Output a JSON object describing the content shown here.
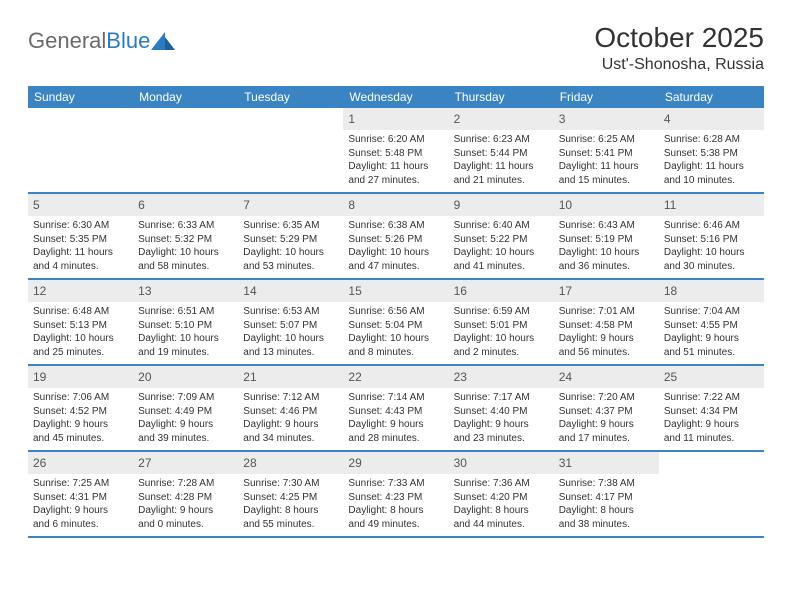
{
  "brand": {
    "name_part1": "General",
    "name_part2": "Blue",
    "text_color": "#6a6a6a",
    "accent_color": "#2a7bbf",
    "icon_fill": "#2a7bbf"
  },
  "title": "October 2025",
  "location": "Ust'-Shonosha, Russia",
  "header_bg": "#3b84c4",
  "header_text_color": "#ffffff",
  "daynum_bg": "#ececec",
  "border_color": "#3b84c4",
  "day_headers": [
    "Sunday",
    "Monday",
    "Tuesday",
    "Wednesday",
    "Thursday",
    "Friday",
    "Saturday"
  ],
  "weeks": [
    [
      null,
      null,
      null,
      {
        "n": "1",
        "sr": "Sunrise: 6:20 AM",
        "ss": "Sunset: 5:48 PM",
        "dl1": "Daylight: 11 hours",
        "dl2": "and 27 minutes."
      },
      {
        "n": "2",
        "sr": "Sunrise: 6:23 AM",
        "ss": "Sunset: 5:44 PM",
        "dl1": "Daylight: 11 hours",
        "dl2": "and 21 minutes."
      },
      {
        "n": "3",
        "sr": "Sunrise: 6:25 AM",
        "ss": "Sunset: 5:41 PM",
        "dl1": "Daylight: 11 hours",
        "dl2": "and 15 minutes."
      },
      {
        "n": "4",
        "sr": "Sunrise: 6:28 AM",
        "ss": "Sunset: 5:38 PM",
        "dl1": "Daylight: 11 hours",
        "dl2": "and 10 minutes."
      }
    ],
    [
      {
        "n": "5",
        "sr": "Sunrise: 6:30 AM",
        "ss": "Sunset: 5:35 PM",
        "dl1": "Daylight: 11 hours",
        "dl2": "and 4 minutes."
      },
      {
        "n": "6",
        "sr": "Sunrise: 6:33 AM",
        "ss": "Sunset: 5:32 PM",
        "dl1": "Daylight: 10 hours",
        "dl2": "and 58 minutes."
      },
      {
        "n": "7",
        "sr": "Sunrise: 6:35 AM",
        "ss": "Sunset: 5:29 PM",
        "dl1": "Daylight: 10 hours",
        "dl2": "and 53 minutes."
      },
      {
        "n": "8",
        "sr": "Sunrise: 6:38 AM",
        "ss": "Sunset: 5:26 PM",
        "dl1": "Daylight: 10 hours",
        "dl2": "and 47 minutes."
      },
      {
        "n": "9",
        "sr": "Sunrise: 6:40 AM",
        "ss": "Sunset: 5:22 PM",
        "dl1": "Daylight: 10 hours",
        "dl2": "and 41 minutes."
      },
      {
        "n": "10",
        "sr": "Sunrise: 6:43 AM",
        "ss": "Sunset: 5:19 PM",
        "dl1": "Daylight: 10 hours",
        "dl2": "and 36 minutes."
      },
      {
        "n": "11",
        "sr": "Sunrise: 6:46 AM",
        "ss": "Sunset: 5:16 PM",
        "dl1": "Daylight: 10 hours",
        "dl2": "and 30 minutes."
      }
    ],
    [
      {
        "n": "12",
        "sr": "Sunrise: 6:48 AM",
        "ss": "Sunset: 5:13 PM",
        "dl1": "Daylight: 10 hours",
        "dl2": "and 25 minutes."
      },
      {
        "n": "13",
        "sr": "Sunrise: 6:51 AM",
        "ss": "Sunset: 5:10 PM",
        "dl1": "Daylight: 10 hours",
        "dl2": "and 19 minutes."
      },
      {
        "n": "14",
        "sr": "Sunrise: 6:53 AM",
        "ss": "Sunset: 5:07 PM",
        "dl1": "Daylight: 10 hours",
        "dl2": "and 13 minutes."
      },
      {
        "n": "15",
        "sr": "Sunrise: 6:56 AM",
        "ss": "Sunset: 5:04 PM",
        "dl1": "Daylight: 10 hours",
        "dl2": "and 8 minutes."
      },
      {
        "n": "16",
        "sr": "Sunrise: 6:59 AM",
        "ss": "Sunset: 5:01 PM",
        "dl1": "Daylight: 10 hours",
        "dl2": "and 2 minutes."
      },
      {
        "n": "17",
        "sr": "Sunrise: 7:01 AM",
        "ss": "Sunset: 4:58 PM",
        "dl1": "Daylight: 9 hours",
        "dl2": "and 56 minutes."
      },
      {
        "n": "18",
        "sr": "Sunrise: 7:04 AM",
        "ss": "Sunset: 4:55 PM",
        "dl1": "Daylight: 9 hours",
        "dl2": "and 51 minutes."
      }
    ],
    [
      {
        "n": "19",
        "sr": "Sunrise: 7:06 AM",
        "ss": "Sunset: 4:52 PM",
        "dl1": "Daylight: 9 hours",
        "dl2": "and 45 minutes."
      },
      {
        "n": "20",
        "sr": "Sunrise: 7:09 AM",
        "ss": "Sunset: 4:49 PM",
        "dl1": "Daylight: 9 hours",
        "dl2": "and 39 minutes."
      },
      {
        "n": "21",
        "sr": "Sunrise: 7:12 AM",
        "ss": "Sunset: 4:46 PM",
        "dl1": "Daylight: 9 hours",
        "dl2": "and 34 minutes."
      },
      {
        "n": "22",
        "sr": "Sunrise: 7:14 AM",
        "ss": "Sunset: 4:43 PM",
        "dl1": "Daylight: 9 hours",
        "dl2": "and 28 minutes."
      },
      {
        "n": "23",
        "sr": "Sunrise: 7:17 AM",
        "ss": "Sunset: 4:40 PM",
        "dl1": "Daylight: 9 hours",
        "dl2": "and 23 minutes."
      },
      {
        "n": "24",
        "sr": "Sunrise: 7:20 AM",
        "ss": "Sunset: 4:37 PM",
        "dl1": "Daylight: 9 hours",
        "dl2": "and 17 minutes."
      },
      {
        "n": "25",
        "sr": "Sunrise: 7:22 AM",
        "ss": "Sunset: 4:34 PM",
        "dl1": "Daylight: 9 hours",
        "dl2": "and 11 minutes."
      }
    ],
    [
      {
        "n": "26",
        "sr": "Sunrise: 7:25 AM",
        "ss": "Sunset: 4:31 PM",
        "dl1": "Daylight: 9 hours",
        "dl2": "and 6 minutes."
      },
      {
        "n": "27",
        "sr": "Sunrise: 7:28 AM",
        "ss": "Sunset: 4:28 PM",
        "dl1": "Daylight: 9 hours",
        "dl2": "and 0 minutes."
      },
      {
        "n": "28",
        "sr": "Sunrise: 7:30 AM",
        "ss": "Sunset: 4:25 PM",
        "dl1": "Daylight: 8 hours",
        "dl2": "and 55 minutes."
      },
      {
        "n": "29",
        "sr": "Sunrise: 7:33 AM",
        "ss": "Sunset: 4:23 PM",
        "dl1": "Daylight: 8 hours",
        "dl2": "and 49 minutes."
      },
      {
        "n": "30",
        "sr": "Sunrise: 7:36 AM",
        "ss": "Sunset: 4:20 PM",
        "dl1": "Daylight: 8 hours",
        "dl2": "and 44 minutes."
      },
      {
        "n": "31",
        "sr": "Sunrise: 7:38 AM",
        "ss": "Sunset: 4:17 PM",
        "dl1": "Daylight: 8 hours",
        "dl2": "and 38 minutes."
      },
      null
    ]
  ]
}
